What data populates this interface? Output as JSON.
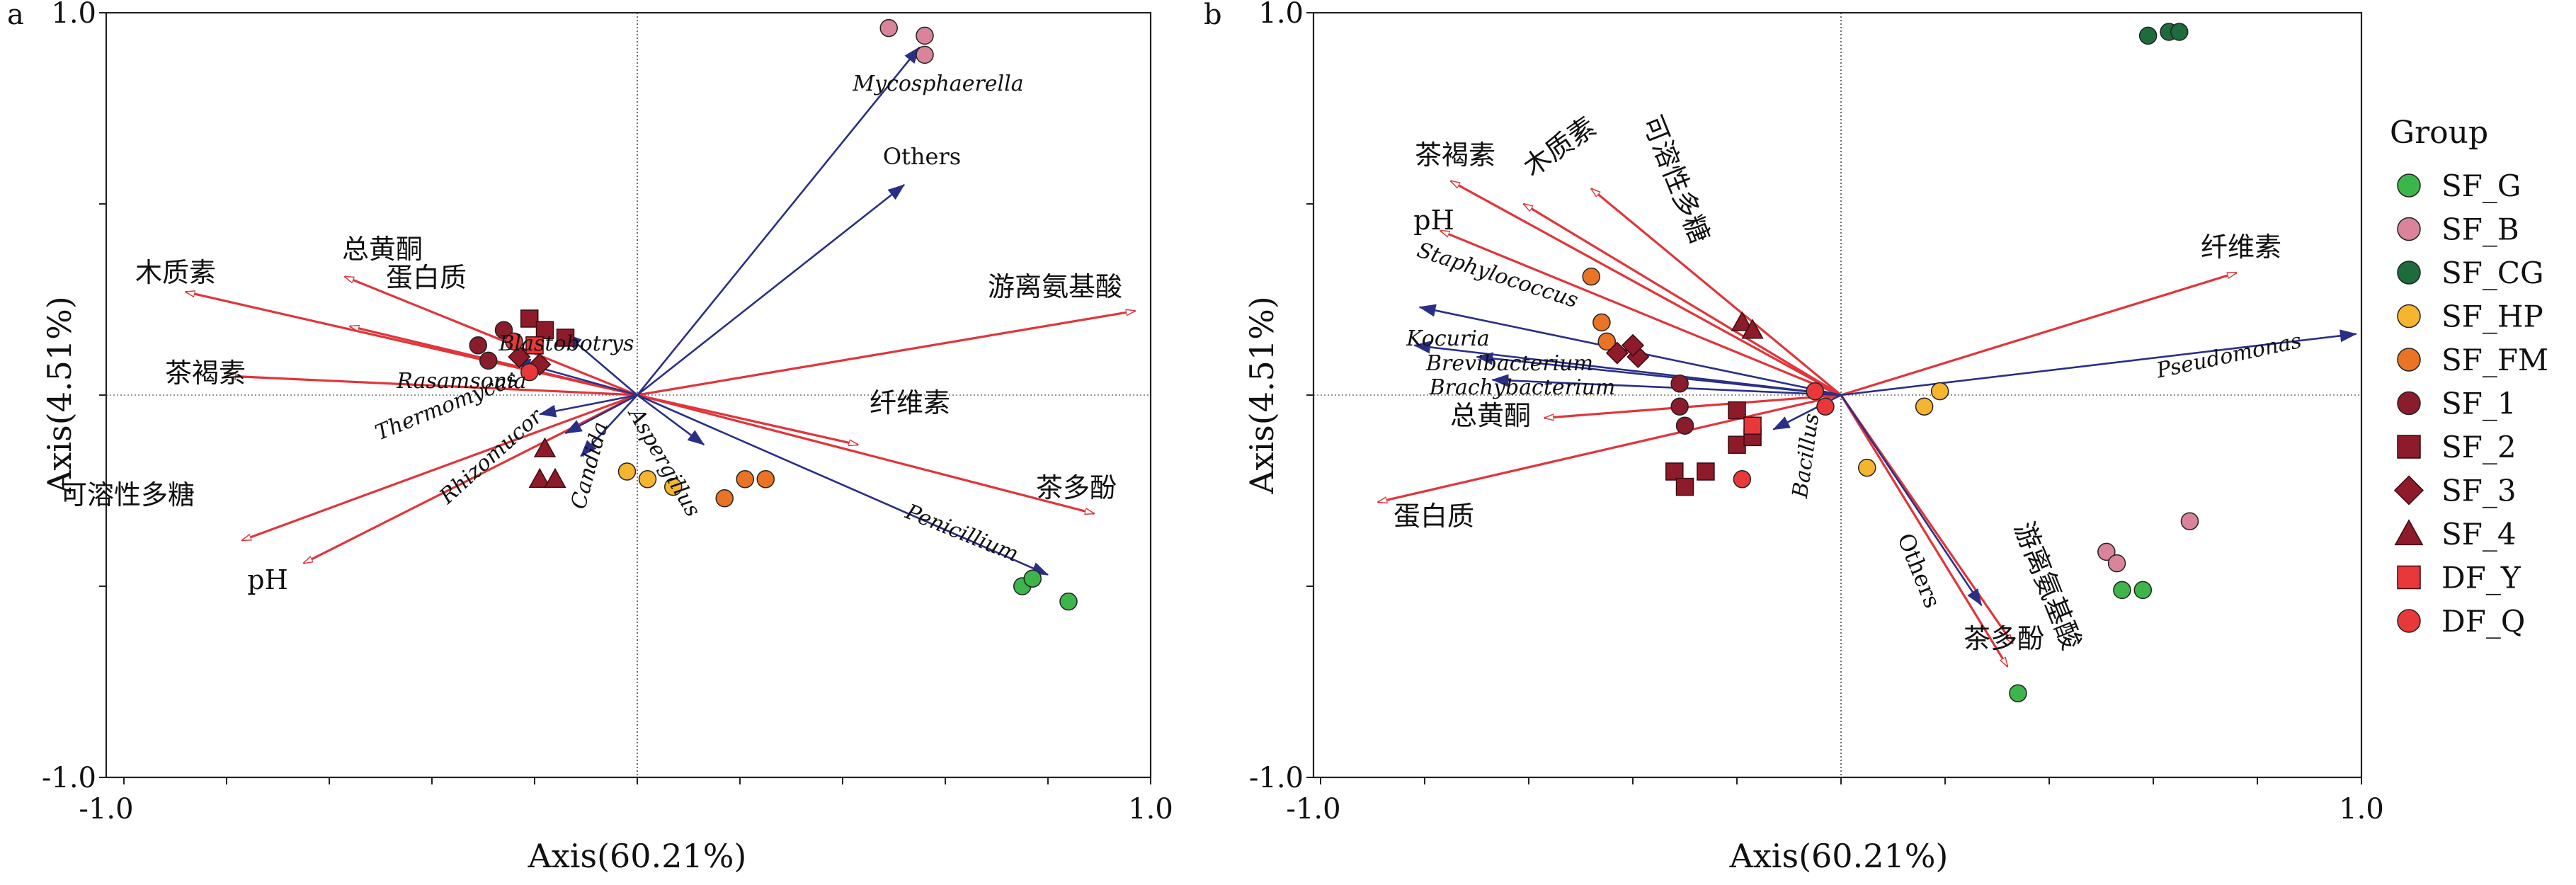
{
  "chart_data": [
    {
      "panel_label": "a",
      "type": "scatter",
      "xlabel": "Axis(60.21%)",
      "ylabel": "Axis(4.51%)",
      "xlim": [
        -1.0,
        1.0
      ],
      "ylim": [
        -1.0,
        1.0
      ],
      "x_tick_labels": [
        "-1.0",
        "1.0"
      ],
      "y_tick_labels": [
        "1.0",
        "-1.0"
      ],
      "env_vectors": [
        {
          "label": "木质素",
          "x": -0.88,
          "y": 0.27
        },
        {
          "label": "总黄酮",
          "x": -0.57,
          "y": 0.31
        },
        {
          "label": "蛋白质",
          "x": -0.56,
          "y": 0.18
        },
        {
          "label": "茶褐素",
          "x": -0.8,
          "y": 0.05
        },
        {
          "label": "可溶性多糖",
          "x": -0.77,
          "y": -0.38
        },
        {
          "label": "pH",
          "x": -0.65,
          "y": -0.44
        },
        {
          "label": "游离氨基酸",
          "x": 0.97,
          "y": 0.22
        },
        {
          "label": "纤维素",
          "x": 0.43,
          "y": -0.13
        },
        {
          "label": "茶多酚",
          "x": 0.89,
          "y": -0.31
        }
      ],
      "species_vectors": [
        {
          "label": "Mycosphaerella",
          "x": 0.55,
          "y": 0.91
        },
        {
          "label": "Others",
          "x": 0.52,
          "y": 0.55
        },
        {
          "label": "Blastobotrys",
          "x": -0.14,
          "y": 0.16
        },
        {
          "label": "Rasamsonia",
          "x": -0.24,
          "y": 0.09
        },
        {
          "label": "Thermomyces",
          "x": -0.19,
          "y": -0.05
        },
        {
          "label": "Rhizomucor",
          "x": -0.14,
          "y": -0.1
        },
        {
          "label": "Candida",
          "x": -0.11,
          "y": -0.16
        },
        {
          "label": "Aspergillus",
          "x": 0.13,
          "y": -0.13
        },
        {
          "label": "Penicillium",
          "x": 0.8,
          "y": -0.47
        }
      ],
      "samples": [
        {
          "group": "SF_G",
          "x": 0.75,
          "y": -0.5
        },
        {
          "group": "SF_G",
          "x": 0.77,
          "y": -0.48
        },
        {
          "group": "SF_G",
          "x": 0.84,
          "y": -0.54
        },
        {
          "group": "SF_B",
          "x": 0.49,
          "y": 0.96
        },
        {
          "group": "SF_B",
          "x": 0.56,
          "y": 0.94
        },
        {
          "group": "SF_B",
          "x": 0.56,
          "y": 0.89
        },
        {
          "group": "SF_HP",
          "x": -0.02,
          "y": -0.2
        },
        {
          "group": "SF_HP",
          "x": 0.02,
          "y": -0.22
        },
        {
          "group": "SF_HP",
          "x": 0.07,
          "y": -0.24
        },
        {
          "group": "SF_FM",
          "x": 0.17,
          "y": -0.27
        },
        {
          "group": "SF_FM",
          "x": 0.21,
          "y": -0.22
        },
        {
          "group": "SF_FM",
          "x": 0.25,
          "y": -0.22
        },
        {
          "group": "SF_1",
          "x": -0.31,
          "y": 0.13
        },
        {
          "group": "SF_1",
          "x": -0.26,
          "y": 0.17
        },
        {
          "group": "SF_1",
          "x": -0.29,
          "y": 0.09
        },
        {
          "group": "SF_2",
          "x": -0.21,
          "y": 0.2
        },
        {
          "group": "SF_2",
          "x": -0.18,
          "y": 0.17
        },
        {
          "group": "SF_2",
          "x": -0.14,
          "y": 0.15
        },
        {
          "group": "SF_3",
          "x": -0.23,
          "y": 0.1
        },
        {
          "group": "SF_3",
          "x": -0.19,
          "y": 0.08
        },
        {
          "group": "SF_4",
          "x": -0.18,
          "y": -0.14
        },
        {
          "group": "SF_4",
          "x": -0.19,
          "y": -0.22
        },
        {
          "group": "SF_4",
          "x": -0.16,
          "y": -0.22
        },
        {
          "group": "DF_Y",
          "x": -0.2,
          "y": 0.13
        },
        {
          "group": "DF_Q",
          "x": -0.24,
          "y": 0.14
        },
        {
          "group": "DF_Q",
          "x": -0.21,
          "y": 0.06
        }
      ]
    },
    {
      "panel_label": "b",
      "type": "scatter",
      "xlabel": "Axis(60.21%)",
      "ylabel": "Axis(4.51%)",
      "xlim": [
        -1.0,
        1.0
      ],
      "ylim": [
        -1.0,
        1.0
      ],
      "x_tick_labels": [
        "-1.0",
        "1.0"
      ],
      "y_tick_labels": [
        "1.0",
        "-1.0"
      ],
      "env_vectors": [
        {
          "label": "茶褐素",
          "x": -0.75,
          "y": 0.56
        },
        {
          "label": "木质素",
          "x": -0.61,
          "y": 0.5
        },
        {
          "label": "可溶性多糖",
          "x": -0.48,
          "y": 0.54
        },
        {
          "label": "pH",
          "x": -0.77,
          "y": 0.43
        },
        {
          "label": "纤维素",
          "x": 0.76,
          "y": 0.32
        },
        {
          "label": "总黄酮",
          "x": -0.57,
          "y": -0.06
        },
        {
          "label": "蛋白质",
          "x": -0.89,
          "y": -0.28
        },
        {
          "label": "游离氨基酸",
          "x": 0.33,
          "y": -0.65
        },
        {
          "label": "茶多酚",
          "x": 0.32,
          "y": -0.71
        }
      ],
      "species_vectors": [
        {
          "label": "Staphylococcus",
          "x": -0.81,
          "y": 0.23
        },
        {
          "label": "Kocuria",
          "x": -0.82,
          "y": 0.13
        },
        {
          "label": "Brevibacterium",
          "x": -0.7,
          "y": 0.1
        },
        {
          "label": "Brachybacterium",
          "x": -0.67,
          "y": 0.04
        },
        {
          "label": "Pseudomonas",
          "x": 0.99,
          "y": 0.16
        },
        {
          "label": "Bacillus",
          "x": -0.13,
          "y": -0.09
        },
        {
          "label": "Others",
          "x": 0.27,
          "y": -0.55
        }
      ],
      "samples": [
        {
          "group": "SF_G",
          "x": 0.34,
          "y": -0.78
        },
        {
          "group": "SF_G",
          "x": 0.54,
          "y": -0.51
        },
        {
          "group": "SF_G",
          "x": 0.58,
          "y": -0.51
        },
        {
          "group": "SF_B",
          "x": 0.51,
          "y": -0.41
        },
        {
          "group": "SF_B",
          "x": 0.53,
          "y": -0.44
        },
        {
          "group": "SF_B",
          "x": 0.67,
          "y": -0.33
        },
        {
          "group": "SF_CG",
          "x": 0.59,
          "y": 0.94
        },
        {
          "group": "SF_CG",
          "x": 0.63,
          "y": 0.95
        },
        {
          "group": "SF_CG",
          "x": 0.65,
          "y": 0.95
        },
        {
          "group": "SF_HP",
          "x": 0.16,
          "y": -0.03
        },
        {
          "group": "SF_HP",
          "x": 0.19,
          "y": 0.01
        },
        {
          "group": "SF_HP",
          "x": 0.05,
          "y": -0.19
        },
        {
          "group": "SF_FM",
          "x": -0.48,
          "y": 0.31
        },
        {
          "group": "SF_FM",
          "x": -0.46,
          "y": 0.19
        },
        {
          "group": "SF_FM",
          "x": -0.45,
          "y": 0.14
        },
        {
          "group": "SF_1",
          "x": -0.31,
          "y": 0.03
        },
        {
          "group": "SF_1",
          "x": -0.31,
          "y": -0.03
        },
        {
          "group": "SF_1",
          "x": -0.3,
          "y": -0.08
        },
        {
          "group": "SF_2",
          "x": -0.2,
          "y": -0.04
        },
        {
          "group": "SF_2",
          "x": -0.2,
          "y": -0.13
        },
        {
          "group": "SF_2",
          "x": -0.17,
          "y": -0.11
        },
        {
          "group": "SF_2",
          "x": -0.32,
          "y": -0.2
        },
        {
          "group": "SF_2",
          "x": -0.3,
          "y": -0.24
        },
        {
          "group": "SF_2",
          "x": -0.26,
          "y": -0.2
        },
        {
          "group": "SF_3",
          "x": -0.43,
          "y": 0.11
        },
        {
          "group": "SF_3",
          "x": -0.39,
          "y": 0.1
        },
        {
          "group": "SF_3",
          "x": -0.4,
          "y": 0.13
        },
        {
          "group": "SF_4",
          "x": -0.19,
          "y": 0.19
        },
        {
          "group": "SF_4",
          "x": -0.17,
          "y": 0.17
        },
        {
          "group": "DF_Y",
          "x": -0.17,
          "y": -0.08
        },
        {
          "group": "DF_Q",
          "x": -0.05,
          "y": 0.01
        },
        {
          "group": "DF_Q",
          "x": -0.03,
          "y": -0.03
        },
        {
          "group": "DF_Q",
          "x": -0.19,
          "y": -0.22
        }
      ]
    }
  ],
  "legend": {
    "title": "Group",
    "items": [
      {
        "label": "SF_G",
        "shape": "circle",
        "color": "#3cb54a"
      },
      {
        "label": "SF_B",
        "shape": "circle",
        "color": "#d9849b"
      },
      {
        "label": "SF_CG",
        "shape": "circle",
        "color": "#1e6b3c"
      },
      {
        "label": "SF_HP",
        "shape": "circle",
        "color": "#f5b52e"
      },
      {
        "label": "SF_FM",
        "shape": "circle",
        "color": "#ea7425"
      },
      {
        "label": "SF_1",
        "shape": "circle",
        "color": "#8a1c2b"
      },
      {
        "label": "SF_2",
        "shape": "square",
        "color": "#8e1b2a"
      },
      {
        "label": "SF_3",
        "shape": "diamond",
        "color": "#8e1b2a"
      },
      {
        "label": "SF_4",
        "shape": "triangle",
        "color": "#8e1b2a"
      },
      {
        "label": "DF_Y",
        "shape": "square",
        "color": "#e8383a"
      },
      {
        "label": "DF_Q",
        "shape": "circle",
        "color": "#e8383a"
      }
    ]
  },
  "colors": {
    "env_vector": "#e0353a",
    "species_vector": "#2a2f86",
    "axis": "#222222"
  }
}
